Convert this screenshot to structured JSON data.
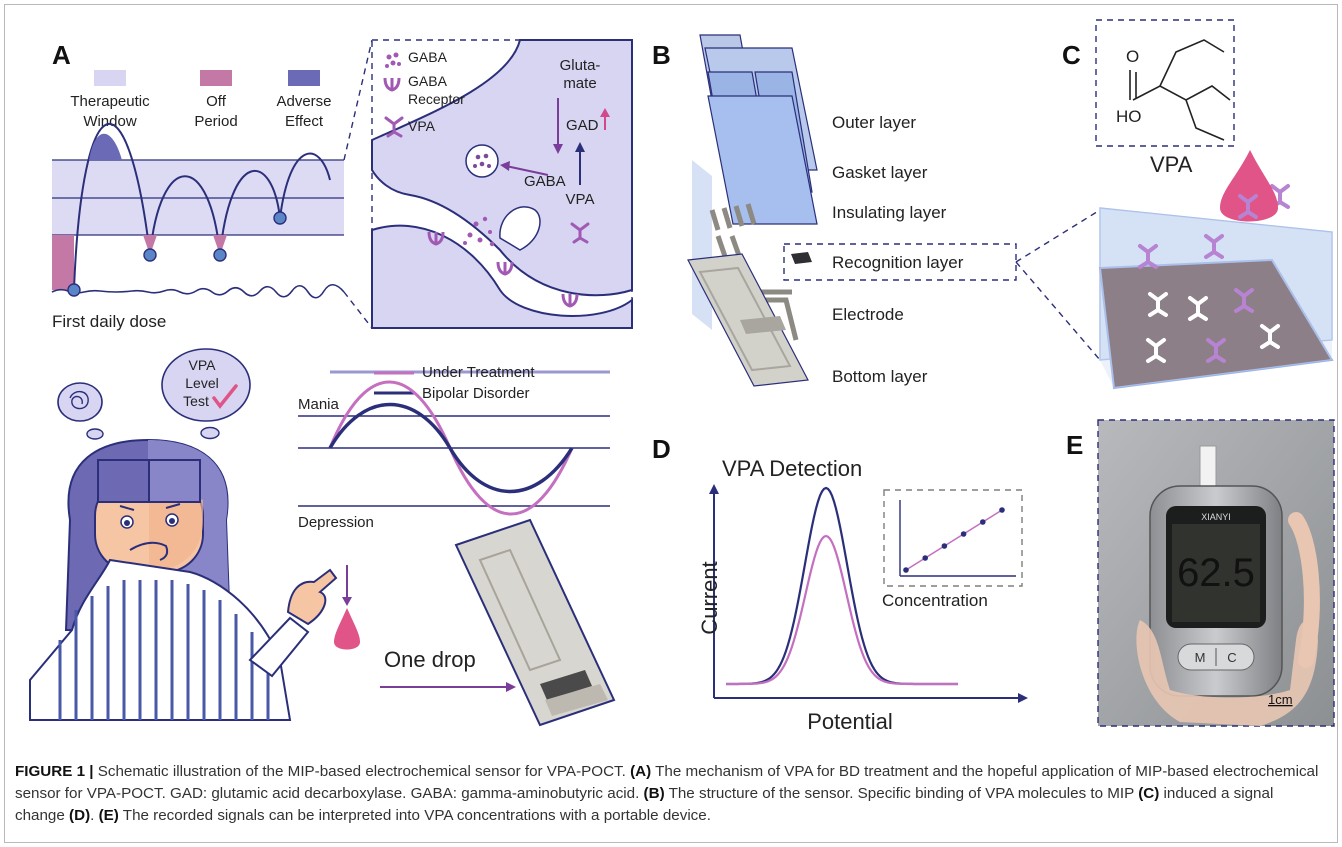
{
  "panels": {
    "a": "A",
    "b": "B",
    "c": "C",
    "d": "D",
    "e": "E"
  },
  "panel_a": {
    "legend_therapeutic_1": "Therapeutic",
    "legend_therapeutic_2": "Window",
    "legend_off_1": "Off",
    "legend_off_2": "Period",
    "legend_adverse_1": "Adverse",
    "legend_adverse_2": "Effect",
    "first_dose": "First daily dose",
    "synapse_gaba": "GABA",
    "synapse_gaba_receptor_1": "GABA",
    "synapse_gaba_receptor_2": "Receptor",
    "synapse_vpa": "VPA",
    "synapse_glutamate_1": "Gluta-",
    "synapse_glutamate_2": "mate",
    "synapse_gad": "GAD",
    "synapse_gaba_arrow": "GABA",
    "synapse_vpa_arrow": "VPA",
    "bubble_1": "VPA",
    "bubble_2": "Level",
    "bubble_3": "Test",
    "legend_under_treatment": "Under Treatment",
    "legend_bipolar": "Bipolar Disorder",
    "mania": "Mania",
    "depression": "Depression",
    "one_drop": "One drop"
  },
  "panel_b": {
    "outer": "Outer layer",
    "gasket": "Gasket layer",
    "insulating": "Insulating layer",
    "recognition": "Recognition layer",
    "electrode": "Electrode",
    "bottom": "Bottom layer"
  },
  "panel_c": {
    "o_atom": "O",
    "ho_atom": "HO",
    "vpa": "VPA"
  },
  "panel_d": {
    "title": "VPA Detection",
    "ylabel": "Current",
    "xlabel": "Potential",
    "inset_label": "Concentration"
  },
  "panel_e": {
    "brand": "XIANYI",
    "reading": "62.5",
    "btn_m": "M",
    "btn_c": "C",
    "scale": "1cm"
  },
  "caption": {
    "figure_label": "FIGURE 1 |",
    "intro": " Schematic illustration of the MIP-based electrochemical sensor for VPA-POCT. ",
    "a_label": "(A)",
    "a_text": " The mechanism of VPA for BD treatment and the hopeful application of MIP-based electrochemical sensor for VPA-POCT. GAD: glutamic acid decarboxylase. GABA: gamma-aminobutyric acid. ",
    "b_label": "(B)",
    "b_text": " The structure of the sensor. Specific binding of VPA molecules to MIP ",
    "c_label": "(C)",
    "c_text": " induced a signal change ",
    "d_label": "(D)",
    "d_text": ". ",
    "e_label": "(E)",
    "e_text": " The recorded signals can be interpreted into VPA concentrations with a portable device."
  },
  "colors": {
    "navy": "#2b2f7a",
    "lavender": "#c8c6ec",
    "pink": "#c978a8",
    "purple": "#a35fb2",
    "drop": "#e05488",
    "layer_blue": "#9ab4e6"
  }
}
